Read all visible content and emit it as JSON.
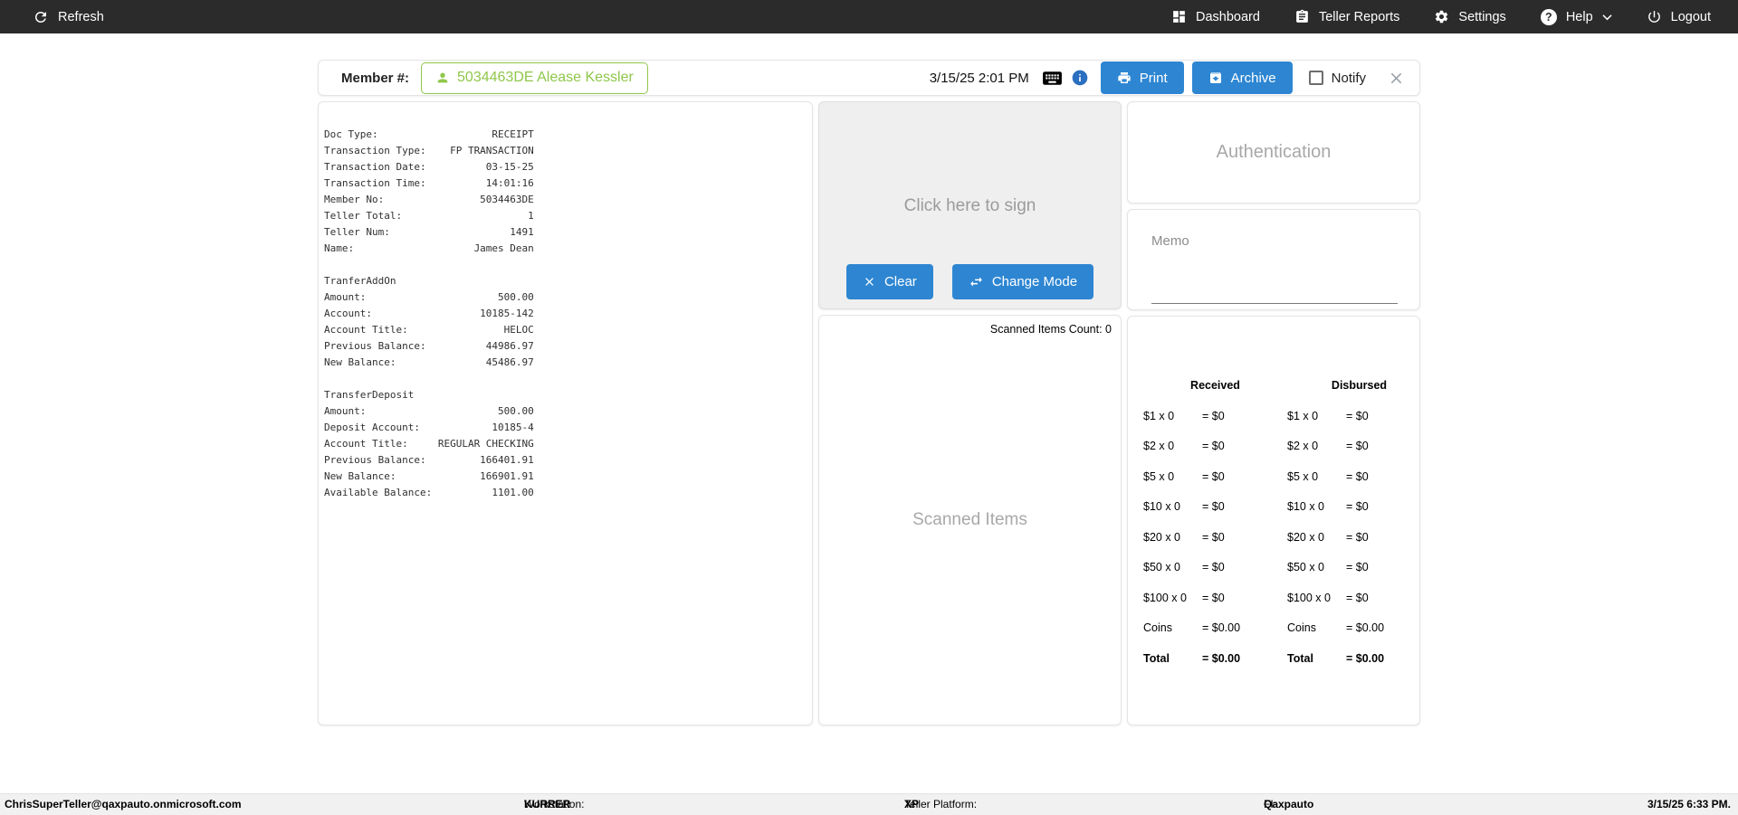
{
  "colors": {
    "accent_blue": "#2e86d2",
    "member_green": "#8fc74a",
    "info_blue": "#2a6fc0",
    "navbar_bg": "#2b2b2b"
  },
  "navbar": {
    "refresh_label": "Refresh",
    "dashboard_label": "Dashboard",
    "teller_reports_label": "Teller Reports",
    "settings_label": "Settings",
    "help_label": "Help",
    "logout_label": "Logout"
  },
  "header": {
    "member_label": "Member #:",
    "member_button": "5034463DE Alease Kessler",
    "datetime": "3/15/25 2:01 PM",
    "print_label": "Print",
    "archive_label": "Archive",
    "notify_label": "Notify"
  },
  "receipt": {
    "text": "Doc Type:                   RECEIPT\nTransaction Type:    FP TRANSACTION\nTransaction Date:          03-15-25\nTransaction Time:          14:01:16\nMember No:                5034463DE\nTeller Total:                     1\nTeller Num:                    1491\nName:                    James Dean\n\nTranferAddOn\nAmount:                      500.00\nAccount:                  10185-142\nAccount Title:                HELOC\nPrevious Balance:          44986.97\nNew Balance:               45486.97\n\nTransferDeposit\nAmount:                      500.00\nDeposit Account:            10185-4\nAccount Title:     REGULAR CHECKING\nPrevious Balance:         166401.91\nNew Balance:              166901.91\nAvailable Balance:          1101.00"
  },
  "signature": {
    "placeholder": "Click here to sign",
    "clear_label": "Clear",
    "change_mode_label": "Change Mode"
  },
  "scanned_items": {
    "count_label": "Scanned Items Count: 0",
    "placeholder": "Scanned Items"
  },
  "authentication": {
    "placeholder": "Authentication"
  },
  "memo": {
    "label": "Memo",
    "value": ""
  },
  "cash_drawer": {
    "received_header": "Received",
    "disbursed_header": "Disbursed",
    "rows": [
      {
        "label": "$1 x 0",
        "received": "= $0",
        "disbursed": "= $0",
        "bold": false
      },
      {
        "label": "$2 x 0",
        "received": "= $0",
        "disbursed": "= $0",
        "bold": false
      },
      {
        "label": "$5 x 0",
        "received": "= $0",
        "disbursed": "= $0",
        "bold": false
      },
      {
        "label": "$10 x 0",
        "received": "= $0",
        "disbursed": "= $0",
        "bold": false
      },
      {
        "label": "$20 x 0",
        "received": "= $0",
        "disbursed": "= $0",
        "bold": false
      },
      {
        "label": "$50 x 0",
        "received": "= $0",
        "disbursed": "= $0",
        "bold": false
      },
      {
        "label": "$100 x 0",
        "received": "= $0",
        "disbursed": "= $0",
        "bold": false
      },
      {
        "label": "Coins",
        "received": "= $0.00",
        "disbursed": "= $0.00",
        "bold": false
      },
      {
        "label": "Total",
        "received": "= $0.00",
        "disbursed": "= $0.00",
        "bold": true
      }
    ]
  },
  "statusbar": {
    "user": "ChrisSuperTeller@qaxpauto.onmicrosoft.com",
    "workstation_label": "Workstation:",
    "workstation": "KURRER",
    "platform_label": "Teller Platform:",
    "platform": "XP",
    "fi_label": "FI:",
    "fi": "Qaxpauto",
    "datetime": "3/15/25 6:33 PM."
  }
}
